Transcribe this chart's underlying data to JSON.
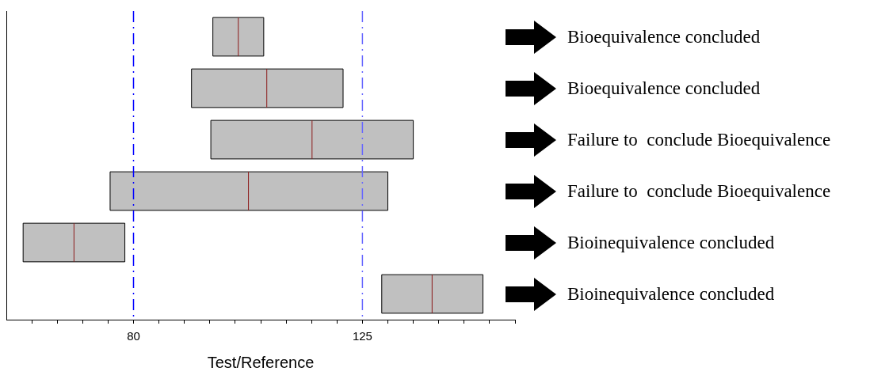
{
  "chart_data": {
    "type": "box",
    "orientation": "horizontal",
    "xlabel": "Test/Reference",
    "color": "#c0c0c0",
    "categories": [
      null,
      null,
      null,
      null,
      null,
      null
    ],
    "boxes": [
      {
        "low": 95.6,
        "q1": 95.6,
        "median": 100.6,
        "q3": 105.6,
        "high": 105.6
      },
      {
        "low": 91.4,
        "q1": 91.4,
        "median": 106.2,
        "q3": 121.2,
        "high": 121.2
      },
      {
        "low": 95.2,
        "q1": 95.2,
        "median": 115.1,
        "q3": 135,
        "high": 135
      },
      {
        "low": 75.4,
        "q1": 75.4,
        "median": 102.6,
        "q3": 130,
        "high": 130
      },
      {
        "low": 58.3,
        "q1": 58.3,
        "median": 68.3,
        "q3": 78.3,
        "high": 78.3
      },
      {
        "low": 128.8,
        "q1": 128.8,
        "median": 138.7,
        "q3": 148.7,
        "high": 148.7
      }
    ],
    "xlim": [
      55,
      155
    ],
    "xticks": [
      {
        "value": 60,
        "label": null
      },
      {
        "value": 65,
        "label": null
      },
      {
        "value": 70,
        "label": null
      },
      {
        "value": 75,
        "label": null
      },
      80,
      {
        "value": 85,
        "label": null
      },
      {
        "value": 90,
        "label": null
      },
      {
        "value": 95,
        "label": null
      },
      {
        "value": 100,
        "label": null
      },
      {
        "value": 105,
        "label": null
      },
      {
        "value": 110,
        "label": null
      },
      {
        "value": 115,
        "label": null
      },
      {
        "value": 120,
        "label": null
      },
      125,
      {
        "value": 130,
        "label": null
      },
      {
        "value": 135,
        "label": null
      },
      {
        "value": 140,
        "label": null
      },
      {
        "value": 145,
        "label": null
      },
      {
        "value": 150,
        "label": null
      },
      {
        "value": 155,
        "label": null
      }
    ],
    "ref_lines": [
      {
        "axis": "x",
        "value": 80,
        "color": "#0000ff",
        "line_style": "dashed"
      },
      {
        "axis": "x",
        "value": 125,
        "color": "#6666ff",
        "line_style": "dashed"
      }
    ],
    "annotations": [
      "Bioequivalence concluded",
      "Bioequivalence concluded",
      "Failure to  conclude Bioequivalence",
      "Failure to  conclude Bioequivalence",
      "Bioinequivalence concluded",
      "Bioinequivalence concluded"
    ],
    "tick_labels": "x",
    "grid": false,
    "legend": false
  }
}
